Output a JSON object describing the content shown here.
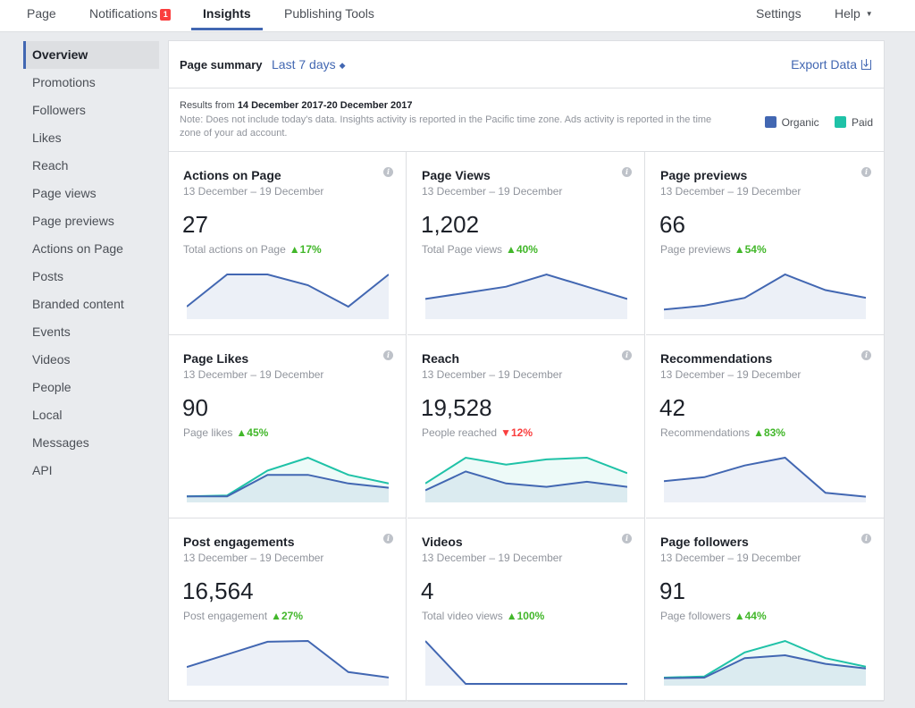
{
  "colors": {
    "organic": "#4267b2",
    "paid": "#1fc2a7",
    "up": "#42b72a",
    "down": "#fa3e3e"
  },
  "nav": {
    "page": "Page",
    "notifications": "Notifications",
    "notifications_badge": "1",
    "insights": "Insights",
    "publishing_tools": "Publishing Tools",
    "settings": "Settings",
    "help": "Help"
  },
  "sidebar": {
    "items": [
      "Overview",
      "Promotions",
      "Followers",
      "Likes",
      "Reach",
      "Page views",
      "Page previews",
      "Actions on Page",
      "Posts",
      "Branded content",
      "Events",
      "Videos",
      "People",
      "Local",
      "Messages",
      "API"
    ]
  },
  "summary": {
    "title": "Page summary",
    "period": "Last 7 days",
    "export": "Export Data",
    "results_prefix": "Results from",
    "results_range": "14 December 2017-20 December 2017",
    "note": "Note: Does not include today's data. Insights activity is reported in the Pacific time zone. Ads activity is reported in the time zone of your ad account.",
    "legend_organic": "Organic",
    "legend_paid": "Paid"
  },
  "cards": [
    {
      "title": "Actions on Page",
      "date": "13 December – 19 December",
      "value": "27",
      "sub": "Total actions on Page",
      "change": "17%",
      "direction": "up",
      "organic": [
        1,
        4,
        4,
        3,
        1,
        4
      ],
      "paid": null
    },
    {
      "title": "Page Views",
      "date": "13 December – 19 December",
      "value": "1,202",
      "sub": "Total Page views",
      "change": "40%",
      "direction": "up",
      "organic": [
        3,
        4,
        5,
        7,
        5,
        3
      ],
      "paid": null
    },
    {
      "title": "Page previews",
      "date": "13 December – 19 December",
      "value": "66",
      "sub": "Page previews",
      "change": "54%",
      "direction": "up",
      "organic": [
        2,
        3,
        5,
        11,
        7,
        5
      ],
      "paid": null
    },
    {
      "title": "Page Likes",
      "date": "13 December – 19 December",
      "value": "90",
      "sub": "Page likes",
      "change": "45%",
      "direction": "up",
      "organic": [
        1,
        1,
        6,
        6,
        4,
        3
      ],
      "paid": [
        1,
        1.2,
        7,
        10,
        6,
        4
      ]
    },
    {
      "title": "Reach",
      "date": "13 December – 19 December",
      "value": "19,528",
      "sub": "People reached",
      "change": "12%",
      "direction": "down",
      "organic": [
        3,
        8.5,
        5,
        4,
        5.5,
        4
      ],
      "paid": [
        5,
        12.5,
        10.5,
        12,
        12.5,
        8
      ]
    },
    {
      "title": "Recommendations",
      "date": "13 December – 19 December",
      "value": "42",
      "sub": "Recommendations",
      "change": "83%",
      "direction": "up",
      "organic": [
        5,
        6,
        9,
        11,
        2,
        1
      ],
      "paid": null
    },
    {
      "title": "Post engagements",
      "date": "13 December – 19 December",
      "value": "16,564",
      "sub": "Post engagement",
      "change": "27%",
      "direction": "up",
      "organic": [
        4,
        7,
        10,
        10.2,
        2.8,
        1.5
      ],
      "paid": null
    },
    {
      "title": "Videos",
      "date": "13 December – 19 December",
      "value": "4",
      "sub": "Total video views",
      "change": "100%",
      "direction": "up",
      "organic": [
        4,
        0,
        0,
        0,
        0,
        0
      ],
      "paid": null
    },
    {
      "title": "Page followers",
      "date": "13 December – 19 December",
      "value": "91",
      "sub": "Page followers",
      "change": "44%",
      "direction": "up",
      "organic": [
        1,
        1.1,
        4.5,
        5,
        3.5,
        2.7
      ],
      "paid": [
        1.1,
        1.3,
        5.5,
        7.5,
        4.5,
        3
      ]
    }
  ]
}
